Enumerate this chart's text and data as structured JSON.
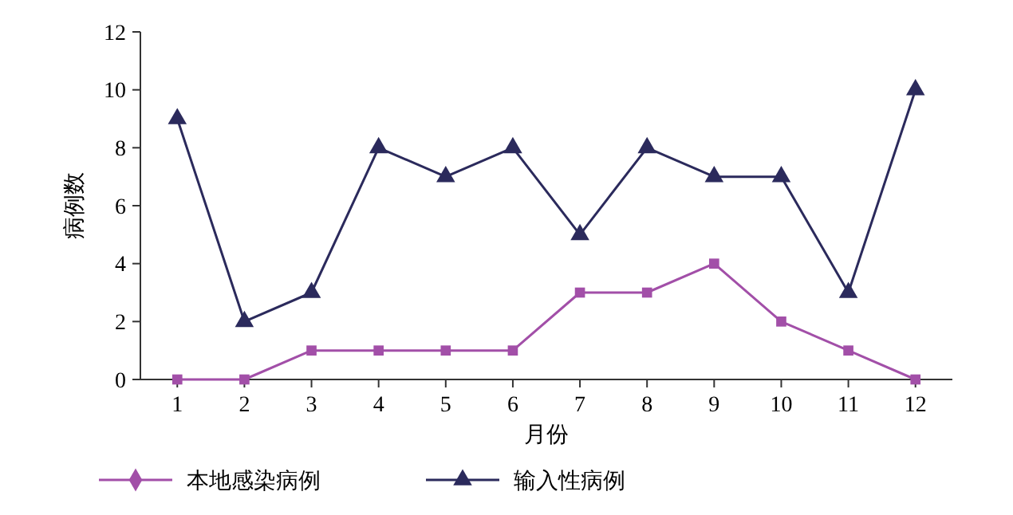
{
  "chart_data": {
    "type": "line",
    "xlabel": "月份",
    "ylabel": "病例数",
    "categories": [
      "1",
      "2",
      "3",
      "4",
      "5",
      "6",
      "7",
      "8",
      "9",
      "10",
      "11",
      "12"
    ],
    "series": [
      {
        "name": "本地感染病例",
        "color": "#a24fa8",
        "marker": "square",
        "values": [
          0,
          0,
          1,
          1,
          1,
          1,
          3,
          3,
          4,
          2,
          1,
          0
        ]
      },
      {
        "name": "输入性病例",
        "color": "#2b2a5c",
        "marker": "triangle",
        "values": [
          9,
          2,
          3,
          8,
          7,
          8,
          5,
          8,
          7,
          7,
          3,
          10
        ]
      }
    ],
    "ylim": [
      0,
      12
    ],
    "yticks": [
      0,
      2,
      4,
      6,
      8,
      10,
      12
    ],
    "grid": false,
    "legend": "bottom",
    "line_style": "solid"
  }
}
